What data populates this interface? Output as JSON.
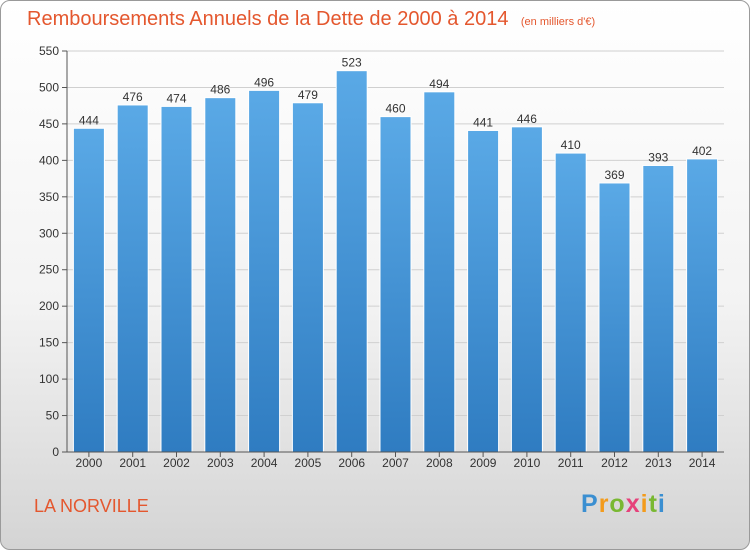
{
  "header": {
    "title": "Remboursements Annuels de la Dette de 2000 à 2014",
    "unit": "(en milliers d'€)"
  },
  "footer": {
    "commune": "LA NORVILLE",
    "logo": "Proxiti"
  },
  "colors": {
    "title": "#e4572e",
    "bar_top": "#5aa9e6",
    "bar_bottom": "#2f7cc1"
  },
  "chart_data": {
    "type": "bar",
    "title": "Remboursements Annuels de la Dette de 2000 à 2014",
    "xlabel": "",
    "ylabel": "en milliers d'€",
    "categories": [
      "2000",
      "2001",
      "2002",
      "2003",
      "2004",
      "2005",
      "2006",
      "2007",
      "2008",
      "2009",
      "2010",
      "2011",
      "2012",
      "2013",
      "2014"
    ],
    "values": [
      444,
      476,
      474,
      486,
      496,
      479,
      523,
      460,
      494,
      441,
      446,
      410,
      369,
      393,
      402
    ],
    "ylim": [
      0,
      550
    ],
    "yticks": [
      0,
      50,
      100,
      150,
      200,
      250,
      300,
      350,
      400,
      450,
      500,
      550
    ],
    "grid": true
  }
}
